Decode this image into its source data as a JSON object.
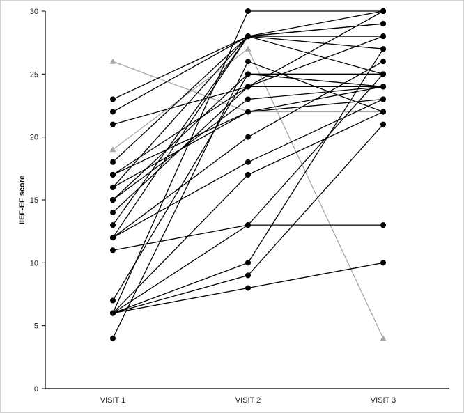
{
  "chart_data": {
    "type": "line",
    "title": "",
    "xlabel": "",
    "ylabel": "IIEF-EF score",
    "categories": [
      "VISIT 1",
      "VISIT 2",
      "VISIT 3"
    ],
    "ylim": [
      0,
      30
    ],
    "yticks": [
      0,
      5,
      10,
      15,
      20,
      25,
      30
    ],
    "grid": false,
    "legend": "none",
    "colors": {
      "main": "#000000",
      "alt": "#a6a6a6",
      "axis": "#000000"
    },
    "series": [
      {
        "values": [
          23,
          28,
          30
        ],
        "style": "main"
      },
      {
        "values": [
          22,
          28,
          29
        ],
        "style": "main"
      },
      {
        "values": [
          21,
          24,
          28
        ],
        "style": "main"
      },
      {
        "values": [
          18,
          28,
          28
        ],
        "style": "main"
      },
      {
        "values": [
          17,
          24,
          30
        ],
        "style": "main"
      },
      {
        "values": [
          17,
          22,
          24
        ],
        "style": "main"
      },
      {
        "values": [
          16,
          28,
          25
        ],
        "style": "main"
      },
      {
        "values": [
          16,
          22,
          23
        ],
        "style": "main"
      },
      {
        "values": [
          15,
          25,
          25
        ],
        "style": "main"
      },
      {
        "values": [
          14,
          24,
          24
        ],
        "style": "main"
      },
      {
        "values": [
          15,
          23,
          24
        ],
        "style": "main"
      },
      {
        "values": [
          13,
          28,
          27
        ],
        "style": "main"
      },
      {
        "values": [
          12,
          20,
          26
        ],
        "style": "main"
      },
      {
        "values": [
          12,
          28,
          29
        ],
        "style": "main"
      },
      {
        "values": [
          12,
          18,
          23
        ],
        "style": "main"
      },
      {
        "values": [
          11,
          13,
          13
        ],
        "style": "main"
      },
      {
        "values": [
          7,
          25,
          24
        ],
        "style": "main"
      },
      {
        "values": [
          6,
          30,
          30
        ],
        "style": "main"
      },
      {
        "values": [
          6,
          13,
          25
        ],
        "style": "main"
      },
      {
        "values": [
          6,
          10,
          27
        ],
        "style": "main"
      },
      {
        "values": [
          6,
          17,
          22
        ],
        "style": "main"
      },
      {
        "values": [
          6,
          9,
          21
        ],
        "style": "main"
      },
      {
        "values": [
          6,
          8,
          10
        ],
        "style": "main"
      },
      {
        "values": [
          4,
          26,
          22
        ],
        "style": "main"
      },
      {
        "values": [
          26,
          22,
          22
        ],
        "style": "alt"
      },
      {
        "values": [
          19,
          27,
          4
        ],
        "style": "alt"
      }
    ]
  }
}
